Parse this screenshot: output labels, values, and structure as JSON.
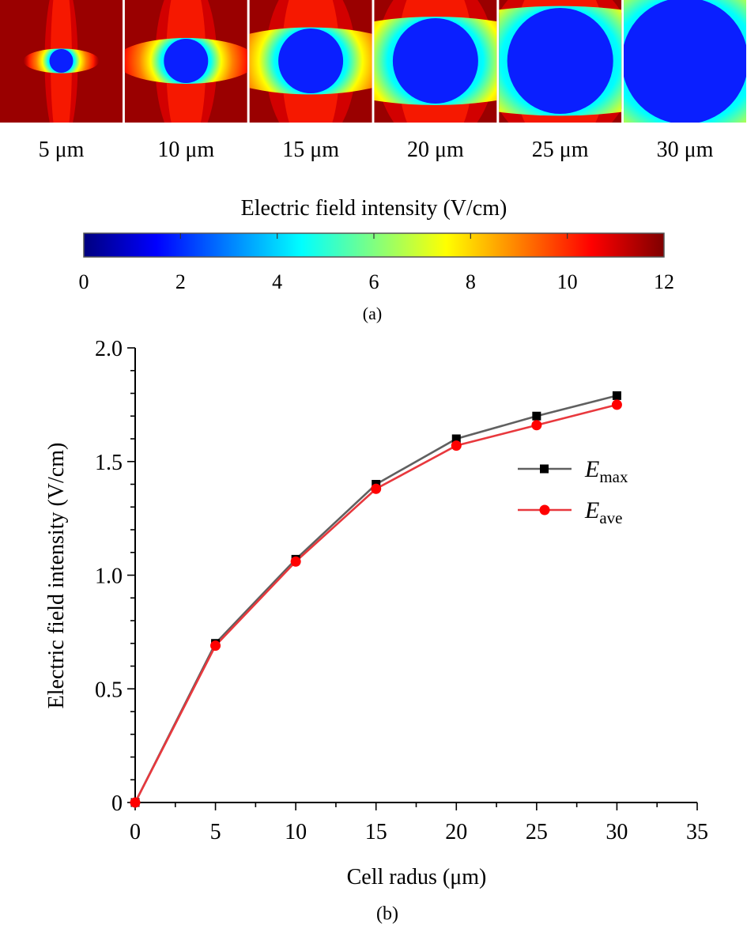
{
  "panel_a": {
    "panels": [
      {
        "label": "5 μm",
        "radius_um": 5
      },
      {
        "label": "10 μm",
        "radius_um": 10
      },
      {
        "label": "15 μm",
        "radius_um": 15
      },
      {
        "label": "20 μm",
        "radius_um": 20
      },
      {
        "label": "25 μm",
        "radius_um": 25
      },
      {
        "label": "30 μm",
        "radius_um": 30
      }
    ],
    "colorbar": {
      "title": "Electric field intensity (V/cm)",
      "min": 0,
      "max": 12,
      "ticks": [
        "0",
        "2",
        "4",
        "6",
        "8",
        "10",
        "12"
      ],
      "colormap": [
        "#00007f",
        "#0000ff",
        "#0080ff",
        "#00ffff",
        "#80ff80",
        "#ffff00",
        "#ff8000",
        "#ff0000",
        "#7f0000"
      ]
    },
    "caption": "(a)"
  },
  "chart_data": {
    "type": "line",
    "title": "",
    "xlabel": "Cell radus (μm)",
    "ylabel": "Electric field intensity (V/cm)",
    "xlim": [
      0,
      35
    ],
    "ylim": [
      0,
      2.0
    ],
    "xticks": [
      0,
      5,
      10,
      15,
      20,
      25,
      30,
      35
    ],
    "xtick_labels": [
      "0",
      "5",
      "10",
      "15",
      "20",
      "25",
      "30",
      "35"
    ],
    "yticks": [
      0,
      0.5,
      1.0,
      1.5,
      2.0
    ],
    "ytick_labels": [
      "0",
      "0.5",
      "1.0",
      "1.5",
      "2.0"
    ],
    "grid": false,
    "legend_position": "right",
    "x": [
      0,
      5,
      10,
      15,
      20,
      25,
      30
    ],
    "series": [
      {
        "name": "E",
        "sub": "max",
        "color": "#606060",
        "marker": "square",
        "marker_color": "#000000",
        "values": [
          0,
          0.7,
          1.07,
          1.4,
          1.6,
          1.7,
          1.79
        ]
      },
      {
        "name": "E",
        "sub": "ave",
        "color": "#e8383d",
        "marker": "circle",
        "marker_color": "#ff0000",
        "values": [
          0,
          0.69,
          1.06,
          1.38,
          1.57,
          1.66,
          1.75
        ]
      }
    ],
    "caption": "(b)"
  }
}
